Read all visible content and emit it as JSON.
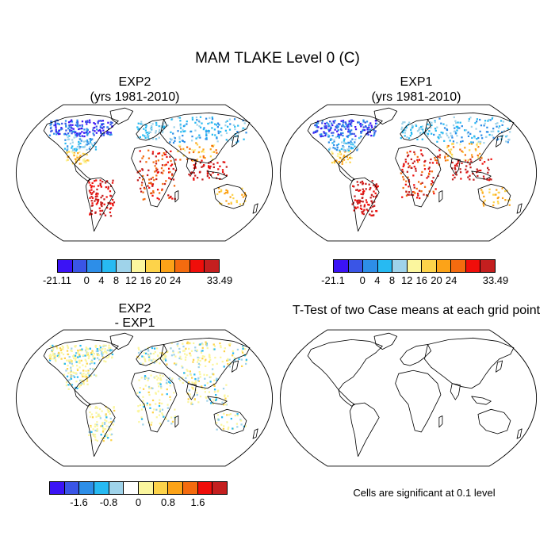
{
  "title": "MAM TLAKE Level 0 (C)",
  "panels": [
    {
      "id": "p1",
      "title_line1": "EXP2",
      "title_line2": "(yrs 1981-2010)"
    },
    {
      "id": "p2",
      "title_line1": "EXP1",
      "title_line2": "(yrs 1981-2010)"
    },
    {
      "id": "p3",
      "title_line1": "EXP2",
      "title_line2": "- EXP1"
    },
    {
      "id": "p4",
      "title_line1": "T-Test of two Case means at each grid point"
    }
  ],
  "significance_note": "Cells are significant at 0.1 level",
  "colorbars": {
    "cb1": {
      "colors": [
        "#3b13f5",
        "#3a55e6",
        "#2d8ee8",
        "#27baf2",
        "#9fd3ea",
        "#fbf69e",
        "#fdd34a",
        "#fca318",
        "#f46b0f",
        "#f00e0a",
        "#c41f1f"
      ],
      "labels": [
        "-21.11",
        "0",
        "4",
        "8",
        "12",
        "16",
        "20",
        "24",
        "33.49"
      ],
      "label_edges": [
        0,
        2,
        3,
        4,
        5,
        6,
        7,
        8,
        11
      ]
    },
    "cb2": {
      "colors": [
        "#3b13f5",
        "#3a55e6",
        "#2d8ee8",
        "#27baf2",
        "#9fd3ea",
        "#fbf69e",
        "#fdd34a",
        "#fca318",
        "#f46b0f",
        "#f00e0a",
        "#c41f1f"
      ],
      "labels": [
        "-21.1",
        "0",
        "4",
        "8",
        "12",
        "16",
        "20",
        "24",
        "33.49"
      ],
      "label_edges": [
        0,
        2,
        3,
        4,
        5,
        6,
        7,
        8,
        11
      ]
    },
    "cb3": {
      "colors": [
        "#3b13f5",
        "#3a55e6",
        "#2d8ee8",
        "#27baf2",
        "#9fd3ea",
        "#ffffff",
        "#fbf69e",
        "#fdd34a",
        "#fca318",
        "#f46b0f",
        "#f00e0a",
        "#c41f1f"
      ],
      "labels": [
        "-1.6",
        "-0.8",
        "0",
        "0.8",
        "1.6"
      ],
      "label_edges": [
        2,
        4,
        6,
        8,
        10
      ]
    }
  }
}
